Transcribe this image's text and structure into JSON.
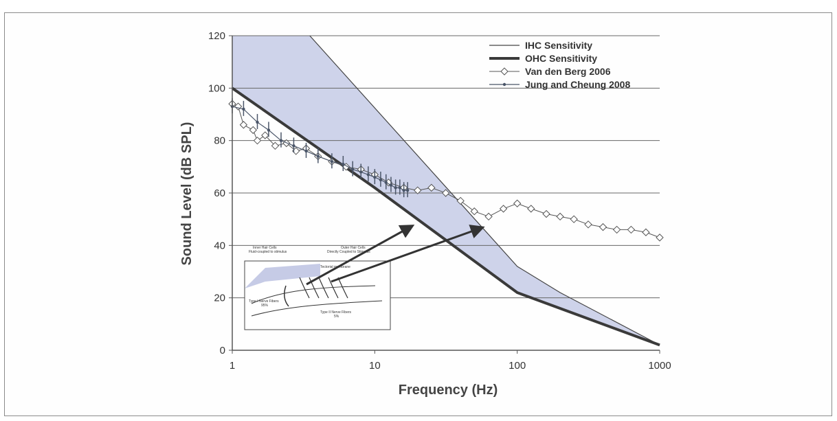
{
  "chart_data": {
    "type": "line",
    "xlabel": "Frequency (Hz)",
    "ylabel": "Sound Level (dB SPL)",
    "xscale": "log",
    "xlim": [
      1,
      1000
    ],
    "ylim": [
      0,
      120
    ],
    "x_ticks": [
      1,
      10,
      100,
      1000
    ],
    "x_tick_labels": [
      "1",
      "10",
      "100",
      "1000"
    ],
    "y_ticks": [
      0,
      20,
      40,
      60,
      80,
      100,
      120
    ],
    "y_tick_labels": [
      "0",
      "20",
      "40",
      "60",
      "80",
      "100",
      "120"
    ],
    "grid": "horizontal",
    "legend_position": "top-right",
    "series": [
      {
        "name": "IHC Sensitivity",
        "style": "thin-line",
        "color": "#444444",
        "x": [
          3.5,
          100,
          200,
          1000
        ],
        "y": [
          120,
          32,
          22,
          2
        ]
      },
      {
        "name": "OHC Sensitivity",
        "style": "thick-line",
        "color": "#3a3a3a",
        "x": [
          1,
          10,
          100,
          1000
        ],
        "y": [
          100,
          62,
          22,
          2
        ]
      },
      {
        "name": "Van den Berg 2006",
        "style": "diamond-markers",
        "color": "#555555",
        "x": [
          1,
          1.1,
          1.2,
          1.4,
          1.5,
          1.7,
          2.0,
          2.4,
          2.8,
          3.3,
          4.0,
          5.0,
          6.3,
          8.0,
          10,
          12.5,
          16,
          20,
          25,
          31.5,
          40,
          50,
          63,
          80,
          100,
          125,
          160,
          200,
          250,
          315,
          400,
          500,
          630,
          800,
          1000
        ],
        "y": [
          94,
          93,
          86,
          84,
          80,
          82,
          78,
          79,
          76,
          77,
          74,
          72,
          70,
          69,
          67,
          64,
          62,
          61,
          62,
          60,
          57,
          53,
          51,
          54,
          56,
          54,
          52,
          51,
          50,
          48,
          47,
          46,
          46,
          45,
          43
        ]
      },
      {
        "name": "Jung and Cheung 2008",
        "style": "small-dot-markers",
        "color": "#4a5568",
        "x": [
          1,
          1.2,
          1.5,
          1.8,
          2.2,
          2.7,
          3.3,
          4.0,
          5.0,
          6.0,
          7.0,
          8.0,
          9.0,
          10,
          11,
          12,
          13,
          14,
          15,
          16,
          17
        ],
        "y": [
          93,
          92,
          87,
          84,
          80,
          78,
          76,
          74,
          72,
          71,
          69,
          68,
          67,
          66,
          65,
          64,
          63,
          62,
          62,
          61,
          61
        ]
      }
    ],
    "shaded_region": {
      "description_series": [
        "OHC Sensitivity",
        "IHC Sensitivity"
      ],
      "color": "#c6cbe6"
    }
  },
  "legend": {
    "items": [
      {
        "label": "IHC Sensitivity"
      },
      {
        "label": "OHC Sensitivity"
      },
      {
        "label": "Van den Berg 2006"
      },
      {
        "label": "Jung and Cheung 2008"
      }
    ]
  },
  "inset": {
    "inner_hair_cells": "Inner Hair Cells",
    "inner_hair_cells_sub": "Fluid-coupled to stimulus",
    "outer_hair_cells": "Outer Hair Cells",
    "outer_hair_cells_sub": "Directly Coupled to Stimulus",
    "tectorial_membrane": "Tectorial membrane",
    "type1": "Type I Nerve Fibers",
    "type1_pct": "95%",
    "type2": "Type II Nerve Fibers",
    "type2_pct": "5%"
  },
  "colors": {
    "shade": "#c6cbe6",
    "grid": "#666666",
    "frame": "#8a8a8a"
  }
}
